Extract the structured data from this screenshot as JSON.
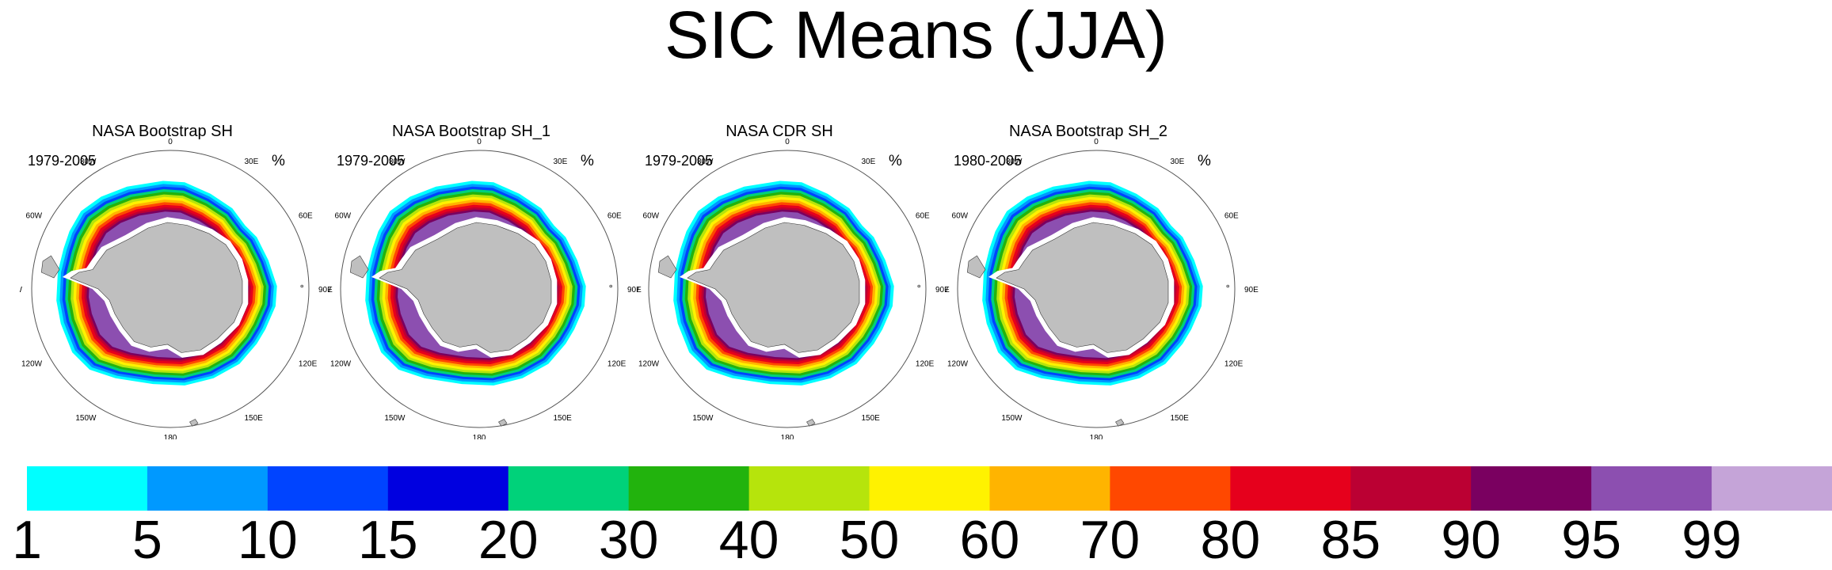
{
  "title": "SIC Means (JJA)",
  "panels": [
    {
      "title": "NASA Bootstrap SH",
      "period": "1979-2005",
      "unit": "%"
    },
    {
      "title": "NASA Bootstrap SH_1",
      "period": "1979-2005",
      "unit": "%"
    },
    {
      "title": "NASA CDR SH",
      "period": "1979-2005",
      "unit": "%"
    },
    {
      "title": "NASA Bootstrap SH_2",
      "period": "1980-2005",
      "unit": "%"
    }
  ],
  "longitude_labels": [
    "0",
    "30E",
    "60E",
    "90E",
    "120E",
    "150E",
    "180",
    "150W",
    "120W",
    "90W",
    "60W",
    "30W"
  ],
  "colorbar": {
    "labels": [
      "1",
      "5",
      "10",
      "15",
      "20",
      "30",
      "40",
      "50",
      "60",
      "70",
      "80",
      "85",
      "90",
      "95",
      "99"
    ],
    "colors": [
      "#00ffff",
      "#0099ff",
      "#0044ff",
      "#0000e0",
      "#00d27a",
      "#22b30d",
      "#b6e40c",
      "#fff200",
      "#ffb400",
      "#ff4800",
      "#e6001c",
      "#bb0033",
      "#7a0060",
      "#8c4fb0",
      "#c5a4d8"
    ]
  },
  "chart_data": {
    "type": "map",
    "projection": "south polar stereographic",
    "variable": "sea ice concentration",
    "units": "%",
    "season": "JJA",
    "colorbar_levels": [
      1,
      5,
      10,
      15,
      20,
      30,
      40,
      50,
      60,
      70,
      80,
      85,
      90,
      95,
      99
    ]
  }
}
